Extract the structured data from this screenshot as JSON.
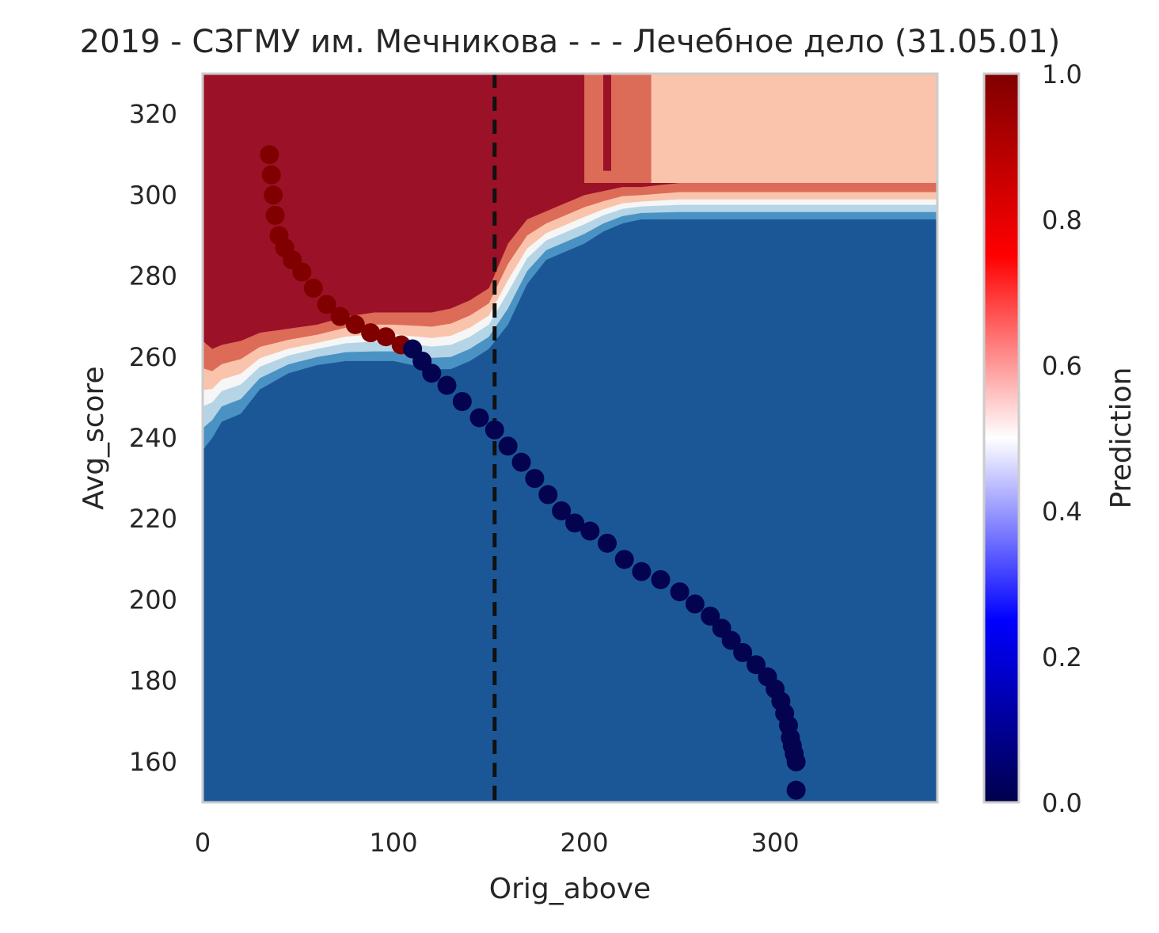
{
  "chart_data": {
    "type": "scatter",
    "title": "2019 - СЗГМУ им. Мечникова - - - Лечебное дело (31.05.01)",
    "xlabel": "Orig_above",
    "ylabel": "Avg_score",
    "xlim": [
      0,
      385
    ],
    "ylim": [
      150,
      330
    ],
    "x_ticks": [
      0,
      100,
      200,
      300
    ],
    "y_ticks": [
      160,
      180,
      200,
      220,
      240,
      260,
      280,
      300,
      320
    ],
    "grid": false,
    "vline": {
      "x": 153,
      "style": "dashed",
      "color": "#111111"
    },
    "background": {
      "kind": "filled-contour",
      "description_levels": [
        0.0,
        0.1,
        0.2,
        0.3,
        0.4,
        0.5,
        0.6,
        0.7,
        0.8,
        0.9,
        1.0
      ],
      "level_colors": [
        "#1b5796",
        "#1b5796",
        "#4a92c3",
        "#b5d5e7",
        "#f6f6f6",
        "#f9c4ab",
        "#dc6b58",
        "#dc6b58",
        "#9b1127",
        "#9b1127"
      ],
      "boundary_low": [
        [
          0,
          237
        ],
        [
          5,
          240
        ],
        [
          10,
          244
        ],
        [
          20,
          246
        ],
        [
          30,
          252
        ],
        [
          45,
          256
        ],
        [
          60,
          258
        ],
        [
          75,
          259
        ],
        [
          90,
          259
        ],
        [
          100,
          259
        ],
        [
          110,
          258
        ],
        [
          120,
          257
        ],
        [
          130,
          257
        ],
        [
          140,
          259
        ],
        [
          150,
          262
        ],
        [
          160,
          268
        ],
        [
          170,
          278
        ],
        [
          180,
          284
        ],
        [
          190,
          286
        ],
        [
          200,
          288
        ],
        [
          210,
          291
        ],
        [
          220,
          293
        ],
        [
          230,
          294
        ],
        [
          250,
          294
        ],
        [
          300,
          294
        ],
        [
          385,
          294
        ]
      ],
      "boundary_high": [
        [
          0,
          264
        ],
        [
          5,
          262
        ],
        [
          10,
          263
        ],
        [
          20,
          264
        ],
        [
          30,
          266
        ],
        [
          45,
          267
        ],
        [
          60,
          268
        ],
        [
          75,
          270
        ],
        [
          90,
          271
        ],
        [
          100,
          271
        ],
        [
          110,
          271
        ],
        [
          120,
          271
        ],
        [
          130,
          272
        ],
        [
          140,
          274
        ],
        [
          150,
          277
        ],
        [
          160,
          288
        ],
        [
          170,
          294
        ],
        [
          180,
          296
        ],
        [
          190,
          298
        ],
        [
          200,
          300
        ],
        [
          210,
          301
        ],
        [
          220,
          302
        ],
        [
          230,
          302
        ],
        [
          250,
          303
        ],
        [
          300,
          303
        ],
        [
          385,
          303
        ]
      ],
      "top_right_region": {
        "x_from": 235,
        "y_from": 303,
        "color": "#f9c4ab"
      },
      "mid_strip_region": {
        "x_from": 200,
        "x_to": 235,
        "y_from": 303,
        "color": "#dc6b58"
      },
      "thin_stripe": {
        "x": 212,
        "y_from": 306,
        "color": "#9b1127"
      }
    },
    "series": [
      {
        "color_by": "prediction",
        "x": [
          35,
          36,
          37,
          38,
          40,
          43,
          47,
          52,
          58,
          65,
          72,
          80,
          88,
          96,
          104,
          110,
          115,
          120,
          128,
          136,
          145,
          153,
          160,
          167,
          174,
          181,
          188,
          195,
          203,
          212,
          221,
          230,
          240,
          250,
          258,
          266,
          272,
          277,
          283,
          290,
          296,
          300,
          303,
          305,
          307,
          308,
          309,
          310,
          311,
          311
        ],
        "y": [
          310,
          305,
          300,
          295,
          290,
          287,
          284,
          281,
          277,
          273,
          270,
          268,
          266,
          265,
          263,
          262,
          259,
          256,
          253,
          249,
          245,
          242,
          238,
          234,
          230,
          226,
          222,
          219,
          217,
          214,
          210,
          207,
          205,
          202,
          199,
          196,
          193,
          190,
          187,
          184,
          181,
          178,
          175,
          172,
          169,
          166,
          164,
          162,
          160,
          153
        ],
        "prediction": [
          1,
          1,
          1,
          1,
          1,
          1,
          1,
          1,
          1,
          1,
          1,
          1,
          1,
          1,
          1,
          0,
          0,
          0,
          0,
          0,
          0,
          0,
          0,
          0,
          0,
          0,
          0,
          0,
          0,
          0,
          0,
          0,
          0,
          0,
          0,
          0,
          0,
          0,
          0,
          0,
          0,
          0,
          0,
          0,
          0,
          0,
          0,
          0,
          0,
          0
        ],
        "colors": {
          "1": "#800000",
          "0": "#03034f"
        }
      }
    ],
    "colorbar": {
      "label": "Prediction",
      "min": 0.0,
      "max": 1.0,
      "ticks": [
        "0.0",
        "0.2",
        "0.4",
        "0.6",
        "0.8",
        "1.0"
      ],
      "colormap": "seismic",
      "stops": [
        "#00004c",
        "#0000ff",
        "#ffffff",
        "#ff0000",
        "#800000"
      ]
    }
  }
}
